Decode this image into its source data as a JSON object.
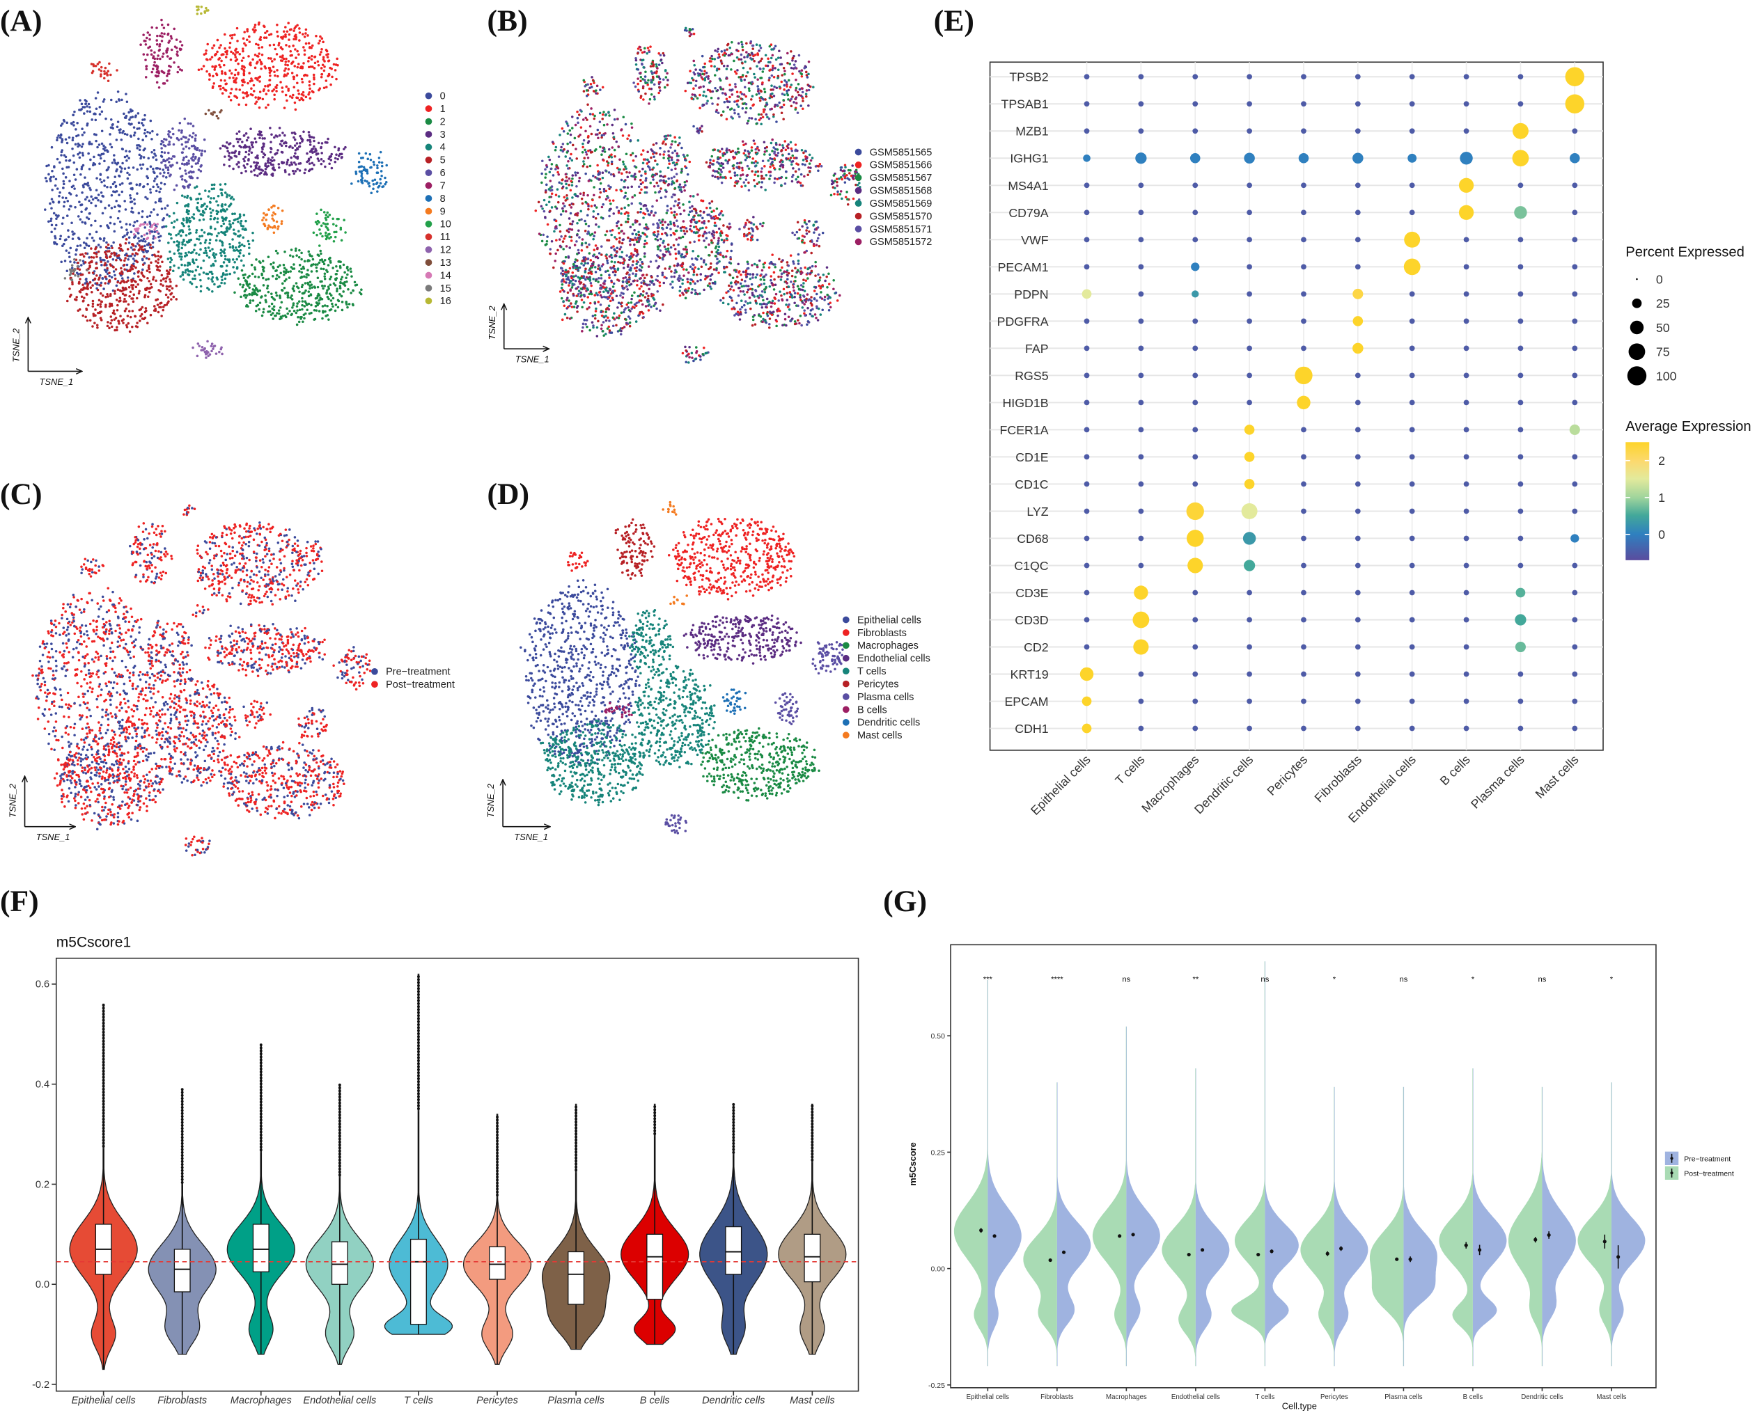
{
  "panels": {
    "A": "(A)",
    "B": "(B)",
    "C": "(C)",
    "D": "(D)",
    "E": "(E)",
    "F": "(F)",
    "G": "(G)"
  },
  "chart_data": [
    {
      "id": "A",
      "type": "scatter",
      "xlabel": "TSNE_1",
      "ylabel": "TSNE_2",
      "legend_position": "right",
      "legend": [
        {
          "label": "0",
          "color": "#3b4a9c"
        },
        {
          "label": "1",
          "color": "#ee2222"
        },
        {
          "label": "2",
          "color": "#1a8a44"
        },
        {
          "label": "3",
          "color": "#5b2c82"
        },
        {
          "label": "4",
          "color": "#16847a"
        },
        {
          "label": "5",
          "color": "#b72025"
        },
        {
          "label": "6",
          "color": "#5a4ea3"
        },
        {
          "label": "7",
          "color": "#9c1f63"
        },
        {
          "label": "8",
          "color": "#1c6fb5"
        },
        {
          "label": "9",
          "color": "#f47a1f"
        },
        {
          "label": "10",
          "color": "#22a04a"
        },
        {
          "label": "11",
          "color": "#d6302b"
        },
        {
          "label": "12",
          "color": "#8e62ad"
        },
        {
          "label": "13",
          "color": "#7f4d3a"
        },
        {
          "label": "14",
          "color": "#d679b5"
        },
        {
          "label": "15",
          "color": "#7a7a7a"
        },
        {
          "label": "16",
          "color": "#b7b834"
        }
      ]
    },
    {
      "id": "B",
      "type": "scatter",
      "xlabel": "TSNE_1",
      "ylabel": "TSNE_2",
      "legend_position": "right",
      "legend": [
        {
          "label": "GSM5851565",
          "color": "#3b4a9c"
        },
        {
          "label": "GSM5851566",
          "color": "#ee2222"
        },
        {
          "label": "GSM5851567",
          "color": "#1a8a44"
        },
        {
          "label": "GSM5851568",
          "color": "#5b2c82"
        },
        {
          "label": "GSM5851569",
          "color": "#16847a"
        },
        {
          "label": "GSM5851570",
          "color": "#b72025"
        },
        {
          "label": "GSM5851571",
          "color": "#5a4ea3"
        },
        {
          "label": "GSM5851572",
          "color": "#9c1f63"
        }
      ]
    },
    {
      "id": "C",
      "type": "scatter",
      "xlabel": "TSNE_1",
      "ylabel": "TSNE_2",
      "legend_position": "right",
      "legend": [
        {
          "label": "Pre−treatment",
          "color": "#3b4a9c"
        },
        {
          "label": "Post−treatment",
          "color": "#ee2222"
        }
      ]
    },
    {
      "id": "D",
      "type": "scatter",
      "xlabel": "TSNE_1",
      "ylabel": "TSNE_2",
      "legend_position": "right",
      "legend": [
        {
          "label": "Epithelial cells",
          "color": "#3b4a9c"
        },
        {
          "label": "Fibroblasts",
          "color": "#ee2222"
        },
        {
          "label": "Macrophages",
          "color": "#1a8a44"
        },
        {
          "label": "Endothelial cells",
          "color": "#5b2c82"
        },
        {
          "label": "T cells",
          "color": "#16847a"
        },
        {
          "label": "Pericytes",
          "color": "#b72025"
        },
        {
          "label": "Plasma cells",
          "color": "#5a4ea3"
        },
        {
          "label": "B cells",
          "color": "#9c1f63"
        },
        {
          "label": "Dendritic cells",
          "color": "#1c6fb5"
        },
        {
          "label": "Mast cells",
          "color": "#f47a1f"
        }
      ]
    },
    {
      "id": "E",
      "type": "dotplot",
      "genes": [
        "TPSB2",
        "TPSAB1",
        "MZB1",
        "IGHG1",
        "MS4A1",
        "CD79A",
        "VWF",
        "PECAM1",
        "PDPN",
        "PDGFRA",
        "FAP",
        "RGS5",
        "HIGD1B",
        "FCER1A",
        "CD1E",
        "CD1C",
        "LYZ",
        "CD68",
        "C1QC",
        "CD3E",
        "CD3D",
        "CD2",
        "KRT19",
        "EPCAM",
        "CDH1"
      ],
      "cell_types": [
        "Epithelial cells",
        "T cells",
        "Macrophages",
        "Dendritic cells",
        "Pericytes",
        "Fibroblasts",
        "Endothelial cells",
        "B cells",
        "Plasma cells",
        "Mast cells"
      ],
      "default": {
        "pct": 8,
        "avg": -0.5
      },
      "values": [
        [
          "TPSB2",
          "Mast cells",
          100,
          2.5
        ],
        [
          "TPSAB1",
          "Mast cells",
          100,
          2.5
        ],
        [
          "MZB1",
          "Plasma cells",
          70,
          2.5
        ],
        [
          "IGHG1",
          "Epithelial cells",
          15,
          0
        ],
        [
          "IGHG1",
          "T cells",
          35,
          0
        ],
        [
          "IGHG1",
          "Macrophages",
          28,
          0
        ],
        [
          "IGHG1",
          "Dendritic cells",
          32,
          0
        ],
        [
          "IGHG1",
          "Pericytes",
          28,
          0
        ],
        [
          "IGHG1",
          "Fibroblasts",
          32,
          0
        ],
        [
          "IGHG1",
          "Endothelial cells",
          22,
          0
        ],
        [
          "IGHG1",
          "B cells",
          45,
          0
        ],
        [
          "IGHG1",
          "Plasma cells",
          75,
          2.5
        ],
        [
          "IGHG1",
          "Mast cells",
          28,
          0
        ],
        [
          "MS4A1",
          "B cells",
          60,
          2.5
        ],
        [
          "CD79A",
          "B cells",
          60,
          2.5
        ],
        [
          "CD79A",
          "Plasma cells",
          45,
          0.8
        ],
        [
          "VWF",
          "Endothelial cells",
          70,
          2.5
        ],
        [
          "PECAM1",
          "Endothelial cells",
          75,
          2.5
        ],
        [
          "PECAM1",
          "Macrophages",
          20,
          0
        ],
        [
          "PDPN",
          "Epithelial cells",
          25,
          1.5
        ],
        [
          "PDPN",
          "Fibroblasts",
          30,
          2.3
        ],
        [
          "PDPN",
          "Macrophages",
          14,
          0.3
        ],
        [
          "PDGFRA",
          "Fibroblasts",
          28,
          2.5
        ],
        [
          "FAP",
          "Fibroblasts",
          32,
          2.5
        ],
        [
          "RGS5",
          "Pericytes",
          85,
          2.5
        ],
        [
          "HIGD1B",
          "Pericytes",
          50,
          2.5
        ],
        [
          "FCER1A",
          "Dendritic cells",
          28,
          2.5
        ],
        [
          "FCER1A",
          "Mast cells",
          30,
          1.2
        ],
        [
          "CD1E",
          "Dendritic cells",
          28,
          2.5
        ],
        [
          "CD1C",
          "Dendritic cells",
          28,
          2.5
        ],
        [
          "LYZ",
          "Macrophages",
          85,
          2.4
        ],
        [
          "LYZ",
          "Dendritic cells",
          70,
          1.5
        ],
        [
          "CD68",
          "Macrophages",
          80,
          2.5
        ],
        [
          "CD68",
          "Dendritic cells",
          45,
          0.3
        ],
        [
          "CD68",
          "Mast cells",
          20,
          0
        ],
        [
          "C1QC",
          "Macrophages",
          65,
          2.5
        ],
        [
          "C1QC",
          "Dendritic cells",
          35,
          0.5
        ],
        [
          "CD3E",
          "T cells",
          55,
          2.5
        ],
        [
          "CD3E",
          "Plasma cells",
          25,
          0.6
        ],
        [
          "CD3D",
          "T cells",
          75,
          2.5
        ],
        [
          "CD3D",
          "Plasma cells",
          35,
          0.5
        ],
        [
          "CD2",
          "T cells",
          65,
          2.5
        ],
        [
          "CD2",
          "Plasma cells",
          30,
          0.7
        ],
        [
          "KRT19",
          "Epithelial cells",
          50,
          2.5
        ],
        [
          "EPCAM",
          "Epithelial cells",
          25,
          2.5
        ],
        [
          "CDH1",
          "Epithelial cells",
          25,
          2.5
        ]
      ],
      "size_legend": {
        "title": "Percent Expressed",
        "values": [
          0,
          25,
          50,
          75,
          100
        ],
        "labels": [
          "0",
          "25",
          "50",
          "75",
          "100"
        ]
      },
      "color_legend": {
        "title": "Average Expression",
        "range": [
          -0.7,
          2.5
        ],
        "ticks": [
          2,
          1,
          0
        ],
        "tick_labels": [
          "2",
          "1",
          "0"
        ]
      }
    },
    {
      "id": "F",
      "type": "violin",
      "title": "m5Cscore1",
      "ylim": [
        -0.2,
        0.6
      ],
      "yticks": [
        -0.2,
        0.0,
        0.2,
        0.4,
        0.6
      ],
      "ytick_labels": [
        "-0.2",
        "0.0",
        "0.2",
        "0.4",
        "0.6"
      ],
      "reference_line": 0.045,
      "reference_color": "#e53935",
      "categories": [
        "Epithelial cells",
        "Fibroblasts",
        "Macrophages",
        "Endothelial cells",
        "T cells",
        "Pericytes",
        "Plasma cells",
        "B cells",
        "Dendritic cells",
        "Mast cells"
      ],
      "colors": [
        "#e64b35",
        "#8491b4",
        "#00a087",
        "#91d1c2",
        "#4dbbd5",
        "#f39b7f",
        "#7e6148",
        "#dc0000",
        "#3c5488",
        "#b09c85"
      ],
      "stats": [
        {
          "min": -0.17,
          "q1": 0.02,
          "median": 0.07,
          "q3": 0.12,
          "max": 0.56,
          "modes": [
            [
              0.07,
              0.055,
              1
            ],
            [
              -0.1,
              0.03,
              0.35
            ]
          ]
        },
        {
          "min": -0.14,
          "q1": -0.015,
          "median": 0.03,
          "q3": 0.07,
          "max": 0.39,
          "modes": [
            [
              0.03,
              0.05,
              1
            ],
            [
              -0.09,
              0.03,
              0.45
            ]
          ]
        },
        {
          "min": -0.14,
          "q1": 0.025,
          "median": 0.07,
          "q3": 0.12,
          "max": 0.48,
          "modes": [
            [
              0.07,
              0.05,
              1
            ],
            [
              -0.09,
              0.03,
              0.35
            ]
          ]
        },
        {
          "min": -0.16,
          "q1": 0.0,
          "median": 0.04,
          "q3": 0.085,
          "max": 0.4,
          "modes": [
            [
              0.04,
              0.05,
              1
            ],
            [
              -0.1,
              0.03,
              0.4
            ]
          ]
        },
        {
          "min": -0.1,
          "q1": -0.08,
          "median": 0.045,
          "q3": 0.09,
          "max": 0.62,
          "modes": [
            [
              0.04,
              0.05,
              0.9
            ],
            [
              -0.085,
              0.022,
              1
            ]
          ]
        },
        {
          "min": -0.16,
          "q1": 0.01,
          "median": 0.04,
          "q3": 0.075,
          "max": 0.34,
          "modes": [
            [
              0.04,
              0.045,
              1
            ],
            [
              -0.1,
              0.03,
              0.45
            ]
          ]
        },
        {
          "min": -0.13,
          "q1": -0.04,
          "median": 0.02,
          "q3": 0.065,
          "max": 0.36,
          "modes": [
            [
              0.02,
              0.05,
              1
            ],
            [
              -0.07,
              0.035,
              0.6
            ]
          ]
        },
        {
          "min": -0.12,
          "q1": -0.03,
          "median": 0.055,
          "q3": 0.1,
          "max": 0.36,
          "modes": [
            [
              0.06,
              0.05,
              1
            ],
            [
              -0.09,
              0.022,
              0.6
            ]
          ]
        },
        {
          "min": -0.14,
          "q1": 0.02,
          "median": 0.065,
          "q3": 0.115,
          "max": 0.36,
          "modes": [
            [
              0.06,
              0.06,
              1
            ],
            [
              -0.09,
              0.03,
              0.3
            ]
          ]
        },
        {
          "min": -0.14,
          "q1": 0.005,
          "median": 0.055,
          "q3": 0.1,
          "max": 0.36,
          "modes": [
            [
              0.06,
              0.05,
              1
            ],
            [
              -0.09,
              0.03,
              0.35
            ]
          ]
        }
      ]
    },
    {
      "id": "G",
      "type": "split-violin",
      "xlabel": "Cell.type",
      "ylabel": "m5Cscore",
      "ylim": [
        -0.25,
        0.7
      ],
      "yticks": [
        -0.25,
        0.0,
        0.25,
        0.5
      ],
      "ytick_labels": [
        "-0.25",
        "0.00",
        "0.25",
        "0.50"
      ],
      "legend": [
        {
          "label": "Pre−treatment",
          "color": "#9fb3e0"
        },
        {
          "label": "Post−treatment",
          "color": "#a9dbb4"
        }
      ],
      "categories": [
        "Epithelial cells",
        "Fibroblasts",
        "Macrophages",
        "Endothelial cells",
        "T cells",
        "Pericytes",
        "Plasma cells",
        "B cells",
        "Dendritic cells",
        "Mast cells"
      ],
      "significance": [
        "***",
        "****",
        "ns",
        "**",
        "ns",
        "*",
        "ns",
        "*",
        "ns",
        "*"
      ],
      "post_mean": [
        0.082,
        0.018,
        0.07,
        0.03,
        0.03,
        0.032,
        0.02,
        0.05,
        0.062,
        0.058
      ],
      "pre_mean": [
        0.07,
        0.035,
        0.073,
        0.04,
        0.037,
        0.043,
        0.02,
        0.04,
        0.072,
        0.025
      ],
      "post_err": [
        0.005,
        0.003,
        0.003,
        0.003,
        0.003,
        0.005,
        0.003,
        0.007,
        0.006,
        0.015
      ],
      "pre_err": [
        0.003,
        0.003,
        0.003,
        0.003,
        0.004,
        0.005,
        0.006,
        0.011,
        0.008,
        0.025
      ],
      "max": [
        0.62,
        0.4,
        0.52,
        0.43,
        0.66,
        0.39,
        0.39,
        0.43,
        0.39,
        0.4
      ],
      "post_modes": [
        [
          [
            0.08,
            0.06,
            1
          ],
          [
            -0.1,
            0.03,
            0.4
          ]
        ],
        [
          [
            0.02,
            0.05,
            1
          ],
          [
            -0.1,
            0.03,
            0.5
          ]
        ],
        [
          [
            0.07,
            0.055,
            1
          ],
          [
            -0.1,
            0.03,
            0.35
          ]
        ],
        [
          [
            0.04,
            0.05,
            1
          ],
          [
            -0.11,
            0.03,
            0.5
          ]
        ],
        [
          [
            0.06,
            0.045,
            0.9
          ],
          [
            -0.09,
            0.025,
            1
          ]
        ],
        [
          [
            0.04,
            0.05,
            1
          ],
          [
            -0.1,
            0.03,
            0.45
          ]
        ],
        [
          [
            0.03,
            0.05,
            1
          ],
          [
            -0.06,
            0.035,
            0.7
          ]
        ],
        [
          [
            0.06,
            0.05,
            1
          ],
          [
            -0.1,
            0.025,
            0.6
          ]
        ],
        [
          [
            0.06,
            0.065,
            1
          ],
          [
            -0.09,
            0.03,
            0.3
          ]
        ],
        [
          [
            0.06,
            0.05,
            1
          ],
          [
            -0.09,
            0.03,
            0.35
          ]
        ]
      ],
      "pre_modes": [
        [
          [
            0.07,
            0.06,
            1
          ],
          [
            -0.1,
            0.03,
            0.3
          ]
        ],
        [
          [
            0.05,
            0.05,
            1
          ],
          [
            -0.09,
            0.03,
            0.5
          ]
        ],
        [
          [
            0.07,
            0.055,
            1
          ],
          [
            -0.09,
            0.03,
            0.4
          ]
        ],
        [
          [
            0.04,
            0.05,
            1
          ],
          [
            -0.1,
            0.03,
            0.45
          ]
        ],
        [
          [
            0.05,
            0.045,
            1
          ],
          [
            -0.09,
            0.025,
            0.7
          ]
        ],
        [
          [
            0.04,
            0.05,
            1
          ],
          [
            -0.1,
            0.03,
            0.4
          ]
        ],
        [
          [
            0.03,
            0.05,
            1
          ],
          [
            -0.05,
            0.03,
            0.6
          ]
        ],
        [
          [
            0.06,
            0.05,
            1
          ],
          [
            -0.09,
            0.025,
            0.7
          ]
        ],
        [
          [
            0.06,
            0.06,
            1
          ],
          [
            -0.08,
            0.03,
            0.35
          ]
        ],
        [
          [
            0.06,
            0.05,
            1
          ],
          [
            -0.09,
            0.03,
            0.35
          ]
        ]
      ]
    }
  ]
}
